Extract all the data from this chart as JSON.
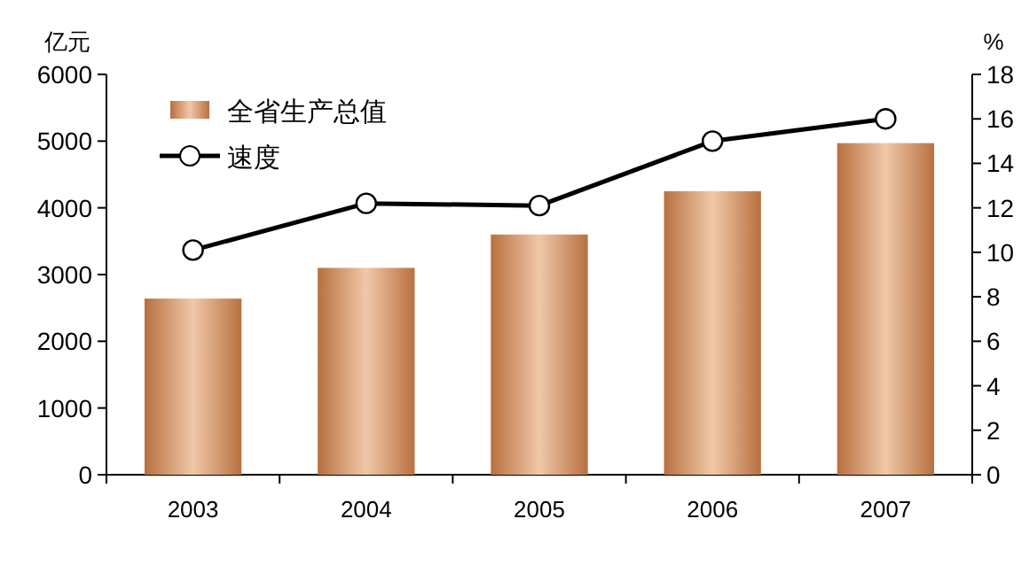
{
  "chart_data": {
    "type": "bar",
    "ylabel": "亿元",
    "y2label": "%",
    "categories": [
      "2003",
      "2004",
      "2005",
      "2006",
      "2007"
    ],
    "series": [
      {
        "name": "全省生产总值",
        "color": "#b8703f",
        "values": [
          2640,
          3100,
          3600,
          4250,
          4970
        ]
      },
      {
        "name": "速度",
        "type": "line",
        "axis": "y2",
        "color": "#000000",
        "marker": "circle",
        "line_style": "solid",
        "values": [
          10.1,
          12.2,
          12.1,
          15.0,
          16.0
        ]
      }
    ],
    "ylim": [
      0,
      6000
    ],
    "yticks": [
      0,
      1000,
      2000,
      3000,
      4000,
      5000,
      6000
    ],
    "y2lim": [
      0,
      18
    ],
    "y2ticks": [
      0,
      2,
      4,
      6,
      8,
      10,
      12,
      14,
      16,
      18
    ],
    "grid": false,
    "legend": "top left"
  }
}
